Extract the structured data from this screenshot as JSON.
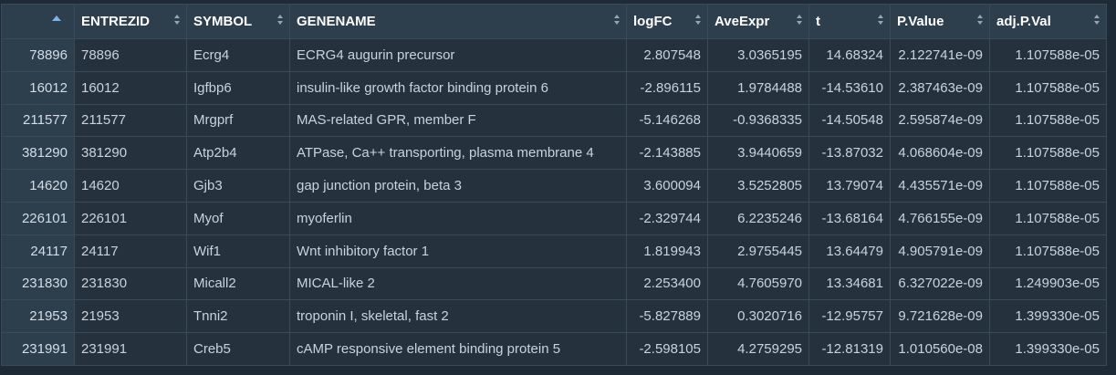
{
  "table": {
    "columns": [
      {
        "key": "rownum",
        "label": ""
      },
      {
        "key": "entrezid",
        "label": "ENTREZID"
      },
      {
        "key": "symbol",
        "label": "SYMBOL"
      },
      {
        "key": "genename",
        "label": "GENENAME"
      },
      {
        "key": "logfc",
        "label": "logFC"
      },
      {
        "key": "aveexpr",
        "label": "AveExpr"
      },
      {
        "key": "t",
        "label": "t"
      },
      {
        "key": "pvalue",
        "label": "P.Value"
      },
      {
        "key": "adjpval",
        "label": "adj.P.Val"
      }
    ],
    "rows": [
      [
        "78896",
        "78896",
        "Ecrg4",
        "ECRG4 augurin precursor",
        "2.807548",
        "3.0365195",
        "14.68324",
        "2.122741e-09",
        "1.107588e-05"
      ],
      [
        "16012",
        "16012",
        "Igfbp6",
        "insulin-like growth factor binding protein 6",
        "-2.896115",
        "1.9784488",
        "-14.53610",
        "2.387463e-09",
        "1.107588e-05"
      ],
      [
        "211577",
        "211577",
        "Mrgprf",
        "MAS-related GPR, member F",
        "-5.146268",
        "-0.9368335",
        "-14.50548",
        "2.595874e-09",
        "1.107588e-05"
      ],
      [
        "381290",
        "381290",
        "Atp2b4",
        "ATPase, Ca++ transporting, plasma membrane 4",
        "-2.143885",
        "3.9440659",
        "-13.87032",
        "4.068604e-09",
        "1.107588e-05"
      ],
      [
        "14620",
        "14620",
        "Gjb3",
        "gap junction protein, beta 3",
        "3.600094",
        "3.5252805",
        "13.79074",
        "4.435571e-09",
        "1.107588e-05"
      ],
      [
        "226101",
        "226101",
        "Myof",
        "myoferlin",
        "-2.329744",
        "6.2235246",
        "-13.68164",
        "4.766155e-09",
        "1.107588e-05"
      ],
      [
        "24117",
        "24117",
        "Wif1",
        "Wnt inhibitory factor 1",
        "1.819943",
        "2.9755445",
        "13.64479",
        "4.905791e-09",
        "1.107588e-05"
      ],
      [
        "231830",
        "231830",
        "Micall2",
        "MICAL-like 2",
        "2.253400",
        "4.7605970",
        "13.34681",
        "6.327022e-09",
        "1.249903e-05"
      ],
      [
        "21953",
        "21953",
        "Tnni2",
        "troponin I, skeletal, fast 2",
        "-5.827889",
        "0.3020716",
        "-12.95757",
        "9.721628e-09",
        "1.399330e-05"
      ],
      [
        "231991",
        "231991",
        "Creb5",
        "cAMP responsive element binding protein 5",
        "-2.598105",
        "4.2759295",
        "-12.81319",
        "1.010560e-08",
        "1.399330e-05"
      ]
    ]
  }
}
